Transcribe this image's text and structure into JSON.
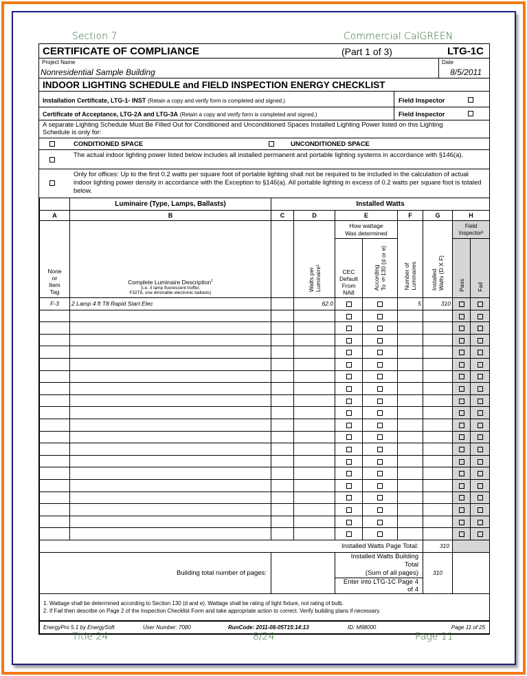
{
  "header": {
    "section": "Section 7",
    "program": "Commercial CalGREEN"
  },
  "form": {
    "title": "CERTIFICATE OF COMPLIANCE",
    "part": "(Part 1 of 3)",
    "form_id": "LTG-1C",
    "project_label": "Project Name",
    "project_name": "Nonresidential Sample Building",
    "date_label": "Date",
    "date": "8/5/2011",
    "subtitle": "INDOOR LIGHTING SCHEDULE and FIELD INSPECTION ENERGY CHECKLIST",
    "install_cert_bold": "Installation Certificate, LTG-1- INST",
    "install_cert_note": "(Retain a copy and verify form is completed and signed.)",
    "accept_cert_bold": "Certificate of Acceptance, LTG-2A and LTG-3A",
    "accept_cert_note": "(Retain a copy and verify form is completed and signed.)",
    "field_inspector": "Field Inspector",
    "separate_note": "A separate Lighting Schedule Must Be Filled Out for Conditioned and Unconditioned Spaces Installed Lighting Power listed on this Lighting Schedule is only for:",
    "conditioned": "CONDITIONED SPACE",
    "unconditioned": "UNCONDITIONED SPACE",
    "actual_power": "The actual indoor lighting power listed below includes all installed permanent and portable lighting systems in accordance with §146(a).",
    "offices": "Only for offices: Up to the first 0.2 watts per square foot of portable lighting shall not be required to be included in the calculation of actual indoor lighting power density in accordance with the Exception to §146(a). All portable lighting in excess of 0.2 watts per square foot is totaled below."
  },
  "schedule": {
    "group_luminaire": "Luminaire (Type, Lamps, Ballasts)",
    "group_watts": "Installed Watts",
    "letters": [
      "A",
      "B",
      "C",
      "D",
      "E",
      "F",
      "G",
      "H"
    ],
    "col_a": "None\nor\nItem\nTag",
    "col_b_title": "Complete Luminaire Description",
    "col_b_sup": "1",
    "col_b_hint": "(i.e, 3 lamp fluorescent troffer,\nF32T8, one dimmable electronic ballasts)",
    "col_d": "Watts per\nLuminaire¹",
    "col_e_head": "How wattage\nWas determined",
    "col_e1": "CEC\nDefault\nFrom\nNA8",
    "col_e2": "According\nTo  §130 (d or e)",
    "col_f": "Number of\nLuminaires",
    "col_g": "Installed\nWatts (D X F)",
    "col_h_head": "Field\nInspector²",
    "col_h_pass": "Pass",
    "col_h_fail": "Fail",
    "rows": [
      {
        "tag": "F-3",
        "description": "2 Lamp 4 ft T8 Rapid Start Elec",
        "watts": "62.0",
        "count": "5",
        "installed": "310"
      }
    ],
    "empty_rows": 19,
    "page_total_label": "Installed Watts Page Total:",
    "page_total": "310",
    "building_pages_label": "Building total number of pages:",
    "building_total_label": "Installed Watts Building Total\n(Sum of all pages)",
    "enter_into": "Enter into LTG-1C Page 4 of 4",
    "building_total": "310"
  },
  "footnotes": [
    "1. Wattage shall be determined according to Section 130 (d and e). Wattage shall be rating of light fixture, not rating of bulb.",
    "2. If Fail then describe on Page 2 of the Inspection Checklist Form and take appropriate action to correct. Verify building plans if necessary."
  ],
  "footer": {
    "software": "EnergyPro 5.1 by EnergySoft",
    "user": "User Number: 7080",
    "runcode": "RunCode: 2011-08-05T15:14:13",
    "id": "ID: M98000",
    "page": "Page 11 of 25"
  },
  "bottom": {
    "left": "Title 24",
    "center": "8/24",
    "right": "Page 11"
  }
}
